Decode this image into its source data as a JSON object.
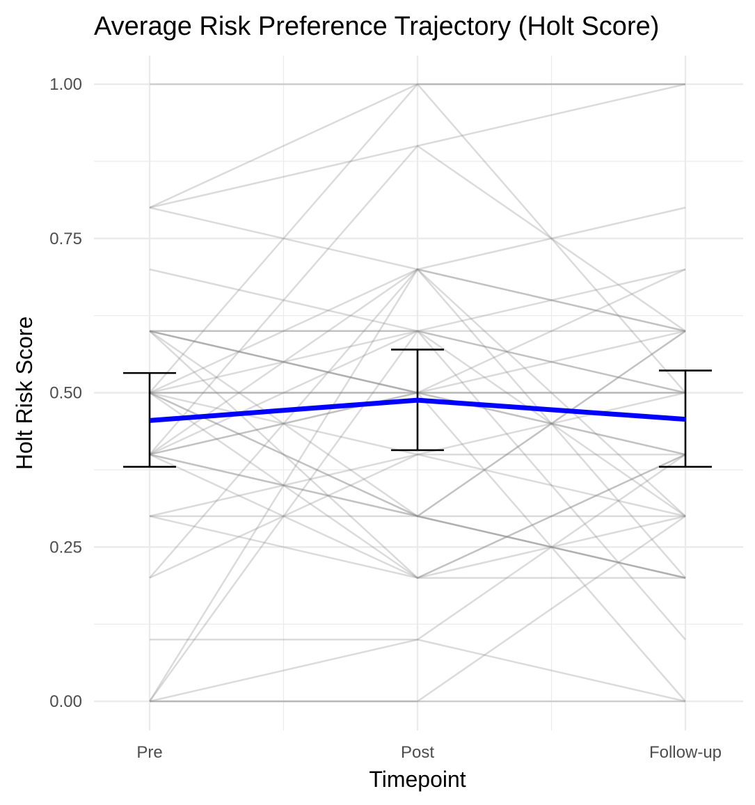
{
  "chart_data": {
    "type": "line",
    "title": "Average Risk Preference Trajectory (Holt Score)",
    "xlabel": "Timepoint",
    "ylabel": "Holt Risk Score",
    "categories": [
      "Pre",
      "Post",
      "Follow-up"
    ],
    "ylim": [
      -0.04,
      1.04
    ],
    "y_ticks": [
      0,
      0.25,
      0.5,
      0.75,
      1
    ],
    "y_tick_labels": [
      "0.00",
      "0.25",
      "0.50",
      "0.75",
      "1.00"
    ],
    "grid": true,
    "legend": "none",
    "colors": {
      "mean_line": "#0000ff",
      "error_bar": "#000000",
      "individual_lines": "#888888",
      "grid": "#ebebeb"
    },
    "mean_series": {
      "name": "",
      "values": [
        0.455,
        0.488,
        0.457
      ],
      "error_low": [
        0.38,
        0.407,
        0.38
      ],
      "error_high": [
        0.532,
        0.57,
        0.536
      ]
    },
    "individual_series": [
      [
        1.0,
        1.0,
        1.0
      ],
      [
        0.8,
        1.0,
        1.0
      ],
      [
        0.8,
        0.9,
        1.0
      ],
      [
        0.8,
        0.7,
        0.6
      ],
      [
        0.7,
        0.6,
        0.5
      ],
      [
        0.6,
        0.6,
        0.6
      ],
      [
        0.6,
        0.5,
        0.5
      ],
      [
        0.6,
        0.5,
        0.4
      ],
      [
        0.6,
        0.3,
        0.2
      ],
      [
        0.5,
        0.7,
        0.6
      ],
      [
        0.5,
        0.5,
        0.5
      ],
      [
        0.5,
        0.3,
        0.2
      ],
      [
        0.5,
        0.2,
        0.4
      ],
      [
        0.5,
        0.6,
        0.3
      ],
      [
        0.4,
        0.5,
        0.4
      ],
      [
        0.4,
        0.3,
        0.2
      ],
      [
        0.4,
        0.6,
        0.7
      ],
      [
        0.4,
        0.5,
        0.6
      ],
      [
        0.4,
        0.9,
        0.6
      ],
      [
        0.3,
        0.3,
        0.3
      ],
      [
        0.3,
        0.2,
        0.2
      ],
      [
        0.2,
        0.7,
        0.8
      ],
      [
        0.1,
        0.1,
        0.0
      ],
      [
        0.0,
        0.0,
        0.0
      ],
      [
        0.0,
        0.0,
        0.3
      ],
      [
        0.0,
        0.1,
        0.4
      ],
      [
        0.0,
        0.6,
        0.5
      ],
      [
        0.0,
        0.7,
        0.3
      ],
      [
        0.6,
        0.6,
        0.1
      ],
      [
        0.5,
        0.4,
        0.4
      ],
      [
        0.4,
        0.3,
        0.6
      ],
      [
        0.6,
        0.2,
        0.4
      ],
      [
        0.5,
        0.5,
        0.0
      ],
      [
        0.4,
        0.7,
        0.2
      ],
      [
        0.5,
        1.0,
        0.5
      ],
      [
        0.3,
        0.4,
        0.5
      ],
      [
        0.6,
        0.5,
        0.7
      ],
      [
        0.4,
        0.2,
        0.3
      ],
      [
        0.5,
        0.3,
        0.6
      ],
      [
        0.2,
        0.4,
        0.3
      ]
    ]
  }
}
